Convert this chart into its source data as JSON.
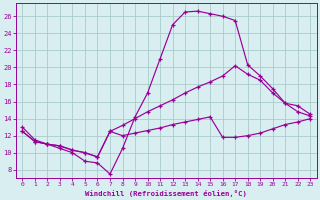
{
  "xlabel": "Windchill (Refroidissement éolien,°C)",
  "bg_color": "#d8eef0",
  "grid_color": "#aacccc",
  "line_color": "#990099",
  "xlim": [
    -0.5,
    23.5
  ],
  "ylim": [
    7,
    27.5
  ],
  "yticks": [
    8,
    10,
    12,
    14,
    16,
    18,
    20,
    22,
    24,
    26
  ],
  "xticks": [
    0,
    1,
    2,
    3,
    4,
    5,
    6,
    7,
    8,
    9,
    10,
    11,
    12,
    13,
    14,
    15,
    16,
    17,
    18,
    19,
    20,
    21,
    22,
    23
  ],
  "curve1_x": [
    0,
    1,
    2,
    3,
    4,
    5,
    6,
    7,
    8,
    9,
    10,
    11,
    12,
    13,
    14,
    15,
    16,
    17,
    18,
    19,
    20,
    21,
    22,
    23
  ],
  "curve1_y": [
    13.0,
    11.5,
    11.0,
    10.5,
    10.0,
    9.0,
    8.8,
    7.5,
    10.5,
    14.2,
    17.0,
    21.0,
    25.0,
    26.5,
    26.6,
    26.3,
    26.0,
    25.5,
    20.3,
    19.0,
    17.5,
    15.8,
    14.8,
    14.3
  ],
  "curve2_x": [
    0,
    1,
    2,
    3,
    4,
    5,
    6,
    7,
    8,
    9,
    10,
    11,
    12,
    13,
    14,
    15,
    16,
    17,
    18,
    19,
    20,
    21,
    22,
    23
  ],
  "curve2_y": [
    12.5,
    11.3,
    11.0,
    10.8,
    10.3,
    10.0,
    9.5,
    12.5,
    13.2,
    14.0,
    14.8,
    15.5,
    16.2,
    17.0,
    17.7,
    18.3,
    19.0,
    20.2,
    19.2,
    18.5,
    17.0,
    15.8,
    15.5,
    14.5
  ],
  "curve3_x": [
    0,
    1,
    2,
    3,
    4,
    5,
    6,
    7,
    8,
    9,
    10,
    11,
    12,
    13,
    14,
    15,
    16,
    17,
    18,
    19,
    20,
    21,
    22,
    23
  ],
  "curve3_y": [
    12.5,
    11.3,
    11.0,
    10.8,
    10.3,
    10.0,
    9.5,
    12.5,
    12.0,
    12.3,
    12.6,
    12.9,
    13.3,
    13.6,
    13.9,
    14.2,
    11.8,
    11.8,
    12.0,
    12.3,
    12.8,
    13.3,
    13.6,
    14.0
  ]
}
